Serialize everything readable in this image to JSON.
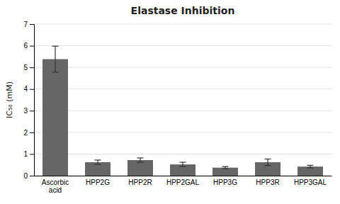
{
  "chart_data": {
    "type": "bar",
    "title": "Elastase Inhibition",
    "ylabel": "IC₅₀ (mM)",
    "categories": [
      "Ascorbic\nacid",
      "HPP2G",
      "HPP2R",
      "HPP2GAL",
      "HPP3G",
      "HPP3R",
      "HPP3GAL"
    ],
    "values": [
      5.38,
      0.62,
      0.72,
      0.52,
      0.37,
      0.62,
      0.42
    ],
    "errors": [
      0.6,
      0.1,
      0.1,
      0.1,
      0.05,
      0.15,
      0.06
    ],
    "color": "#666666",
    "ylim": [
      0,
      7
    ],
    "yticks": [
      0,
      1,
      2,
      3,
      4,
      5,
      6,
      7
    ],
    "grid": true
  }
}
